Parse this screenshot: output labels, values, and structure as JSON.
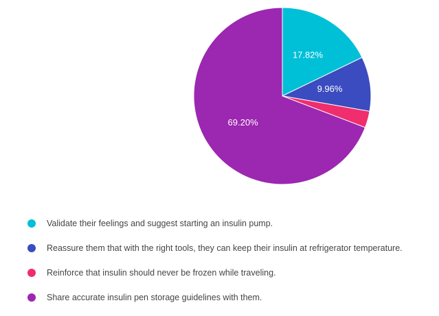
{
  "chart_data": {
    "type": "pie",
    "title": "",
    "slices": [
      {
        "label": "Validate their feelings and suggest starting an insulin pump.",
        "value": 17.82,
        "display": "17.82%",
        "color": "#00c0d8"
      },
      {
        "label": "Reassure them that with the right tools, they can keep their insulin at refrigerator temperature.",
        "value": 9.96,
        "display": "9.96%",
        "color": "#3b4cc0"
      },
      {
        "label": "Reinforce that insulin should never be frozen while traveling.",
        "value": 3.02,
        "display": "",
        "color": "#f02d6d"
      },
      {
        "label": "Share accurate insulin pen storage guidelines with them.",
        "value": 69.2,
        "display": "69.20%",
        "color": "#9c27b0"
      }
    ],
    "legend_position": "bottom"
  }
}
